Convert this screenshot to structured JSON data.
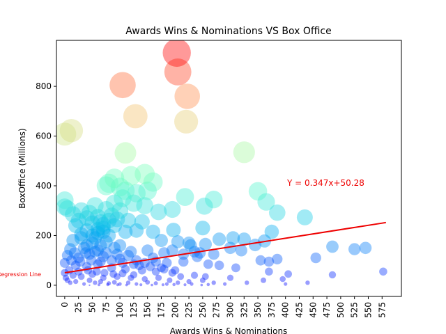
{
  "chart_data": {
    "type": "scatter",
    "title": "Awards Wins & Nominations VS Box Office",
    "xlabel": "Awards Wins & Nominations",
    "ylabel": "BoxOffice (Millions)",
    "xlim": [
      -15,
      610
    ],
    "ylim": [
      -45,
      985
    ],
    "xticks": [
      0,
      25,
      50,
      75,
      100,
      125,
      150,
      175,
      200,
      225,
      250,
      275,
      300,
      325,
      350,
      375,
      400,
      425,
      450,
      475,
      500,
      525,
      550,
      575
    ],
    "yticks": [
      0,
      200,
      400,
      600,
      800
    ],
    "grid": false,
    "colormap": "rainbow (color by BoxOffice)",
    "marker_size_by": "BoxOffice",
    "regression": {
      "label": "Regression Line",
      "equation_text": "Y = 0.347x+50.28",
      "slope": 0.347,
      "intercept": 50.28,
      "x_range": [
        0,
        582
      ],
      "color": "#ee0000"
    },
    "points": [
      [
        203,
        935
      ],
      [
        205,
        858
      ],
      [
        105,
        805
      ],
      [
        222,
        760
      ],
      [
        128,
        680
      ],
      [
        220,
        658
      ],
      [
        12,
        622
      ],
      [
        0,
        608
      ],
      [
        110,
        532
      ],
      [
        325,
        535
      ],
      [
        145,
        448
      ],
      [
        120,
        440
      ],
      [
        90,
        430
      ],
      [
        80,
        410
      ],
      [
        160,
        415
      ],
      [
        75,
        400
      ],
      [
        100,
        395
      ],
      [
        110,
        380
      ],
      [
        150,
        380
      ],
      [
        130,
        370
      ],
      [
        350,
        378
      ],
      [
        0,
        342
      ],
      [
        218,
        355
      ],
      [
        270,
        345
      ],
      [
        0,
        315
      ],
      [
        5,
        308
      ],
      [
        30,
        300
      ],
      [
        365,
        335
      ],
      [
        385,
        292
      ],
      [
        435,
        273
      ],
      [
        253,
        318
      ],
      [
        170,
        295
      ],
      [
        195,
        305
      ],
      [
        55,
        320
      ],
      [
        75,
        305
      ],
      [
        100,
        300
      ],
      [
        125,
        330
      ],
      [
        145,
        320
      ],
      [
        15,
        285
      ],
      [
        40,
        270
      ],
      [
        60,
        275
      ],
      [
        95,
        265
      ],
      [
        115,
        260
      ],
      [
        140,
        255
      ],
      [
        20,
        240
      ],
      [
        50,
        250
      ],
      [
        70,
        230
      ],
      [
        90,
        240
      ],
      [
        110,
        215
      ],
      [
        130,
        220
      ],
      [
        160,
        215
      ],
      [
        197,
        222
      ],
      [
        250,
        230
      ],
      [
        305,
        190
      ],
      [
        325,
        185
      ],
      [
        280,
        185
      ],
      [
        40,
        220
      ],
      [
        60,
        210
      ],
      [
        80,
        200
      ],
      [
        30,
        190
      ],
      [
        15,
        180
      ],
      [
        50,
        170
      ],
      [
        75,
        175
      ],
      [
        100,
        160
      ],
      [
        175,
        180
      ],
      [
        205,
        175
      ],
      [
        225,
        170
      ],
      [
        255,
        165
      ],
      [
        300,
        150
      ],
      [
        345,
        162
      ],
      [
        362,
        178
      ],
      [
        375,
        215
      ],
      [
        320,
        140
      ],
      [
        10,
        145
      ],
      [
        35,
        150
      ],
      [
        60,
        140
      ],
      [
        90,
        150
      ],
      [
        120,
        135
      ],
      [
        150,
        140
      ],
      [
        235,
        135
      ],
      [
        245,
        130
      ],
      [
        270,
        125
      ],
      [
        485,
        155
      ],
      [
        525,
        145
      ],
      [
        545,
        150
      ],
      [
        5,
        120
      ],
      [
        25,
        110
      ],
      [
        45,
        125
      ],
      [
        70,
        115
      ],
      [
        100,
        105
      ],
      [
        130,
        100
      ],
      [
        160,
        110
      ],
      [
        185,
        90
      ],
      [
        215,
        95
      ],
      [
        260,
        85
      ],
      [
        355,
        100
      ],
      [
        370,
        95
      ],
      [
        455,
        110
      ],
      [
        280,
        80
      ],
      [
        310,
        70
      ],
      [
        385,
        105
      ],
      [
        0,
        90
      ],
      [
        20,
        80
      ],
      [
        40,
        75
      ],
      [
        60,
        85
      ],
      [
        85,
        70
      ],
      [
        110,
        65
      ],
      [
        140,
        60
      ],
      [
        165,
        55
      ],
      [
        180,
        65
      ],
      [
        195,
        50
      ],
      [
        235,
        40
      ],
      [
        255,
        35
      ],
      [
        370,
        55
      ],
      [
        405,
        45
      ],
      [
        485,
        42
      ],
      [
        577,
        55
      ],
      [
        210,
        35
      ],
      [
        300,
        30
      ],
      [
        0,
        50
      ],
      [
        15,
        40
      ],
      [
        30,
        35
      ],
      [
        50,
        45
      ],
      [
        70,
        30
      ],
      [
        95,
        35
      ],
      [
        120,
        30
      ],
      [
        145,
        25
      ],
      [
        170,
        30
      ],
      [
        190,
        20
      ],
      [
        225,
        15
      ],
      [
        250,
        20
      ],
      [
        270,
        10
      ],
      [
        360,
        20
      ],
      [
        395,
        25
      ],
      [
        440,
        10
      ],
      [
        400,
        5
      ],
      [
        5,
        20
      ],
      [
        10,
        10
      ],
      [
        20,
        15
      ],
      [
        35,
        5
      ],
      [
        45,
        20
      ],
      [
        55,
        10
      ],
      [
        65,
        15
      ],
      [
        80,
        8
      ],
      [
        90,
        12
      ],
      [
        100,
        5
      ],
      [
        115,
        10
      ],
      [
        130,
        5
      ],
      [
        150,
        12
      ],
      [
        165,
        8
      ],
      [
        185,
        5
      ],
      [
        205,
        10
      ],
      [
        230,
        5
      ],
      [
        260,
        3
      ],
      [
        2,
        30
      ],
      [
        8,
        60
      ],
      [
        25,
        55
      ],
      [
        42,
        60
      ],
      [
        58,
        55
      ],
      [
        72,
        50
      ],
      [
        88,
        45
      ],
      [
        105,
        48
      ],
      [
        125,
        42
      ],
      [
        135,
        80
      ],
      [
        155,
        75
      ],
      [
        175,
        70
      ],
      [
        200,
        60
      ],
      [
        12,
        100
      ],
      [
        28,
        95
      ],
      [
        48,
        100
      ],
      [
        65,
        95
      ],
      [
        85,
        100
      ],
      [
        105,
        90
      ],
      [
        125,
        85
      ],
      [
        145,
        90
      ],
      [
        165,
        95
      ],
      [
        18,
        130
      ],
      [
        38,
        130
      ],
      [
        55,
        135
      ],
      [
        75,
        130
      ],
      [
        95,
        125
      ],
      [
        115,
        120
      ],
      [
        55,
        190
      ],
      [
        65,
        255
      ],
      [
        85,
        280
      ],
      [
        45,
        290
      ],
      [
        70,
        215
      ],
      [
        65,
        160
      ],
      [
        50,
        200
      ],
      [
        60,
        225
      ],
      [
        70,
        245
      ],
      [
        80,
        260
      ],
      [
        40,
        160
      ],
      [
        30,
        205
      ],
      [
        25,
        260
      ],
      [
        90,
        330
      ],
      [
        105,
        350
      ],
      [
        180,
        130
      ],
      [
        195,
        140
      ],
      [
        215,
        125
      ],
      [
        228,
        160
      ],
      [
        240,
        115
      ],
      [
        45,
        0
      ],
      [
        62,
        2
      ],
      [
        78,
        3
      ],
      [
        96,
        2
      ],
      [
        112,
        1
      ],
      [
        138,
        2
      ],
      [
        158,
        1
      ],
      [
        178,
        2
      ],
      [
        198,
        3
      ],
      [
        218,
        2
      ],
      [
        248,
        1
      ],
      [
        290,
        5
      ],
      [
        330,
        10
      ]
    ]
  }
}
